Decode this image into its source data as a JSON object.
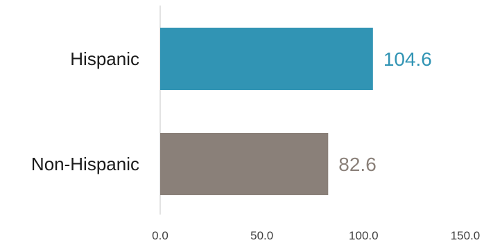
{
  "chart_data": {
    "type": "bar",
    "orientation": "horizontal",
    "categories": [
      "Hispanic",
      "Non-Hispanic"
    ],
    "values": [
      104.6,
      82.6
    ],
    "value_labels": [
      "104.6",
      "82.6"
    ],
    "colors": [
      "#3194b4",
      "#8a8079"
    ],
    "title": "",
    "xlabel": "",
    "ylabel": "",
    "xlim": [
      0,
      150
    ],
    "x_ticks": [
      0,
      50,
      100,
      150
    ],
    "x_tick_labels": [
      "0.0",
      "50.0",
      "100.0",
      "150.0"
    ],
    "grid": false,
    "legend": "none"
  }
}
